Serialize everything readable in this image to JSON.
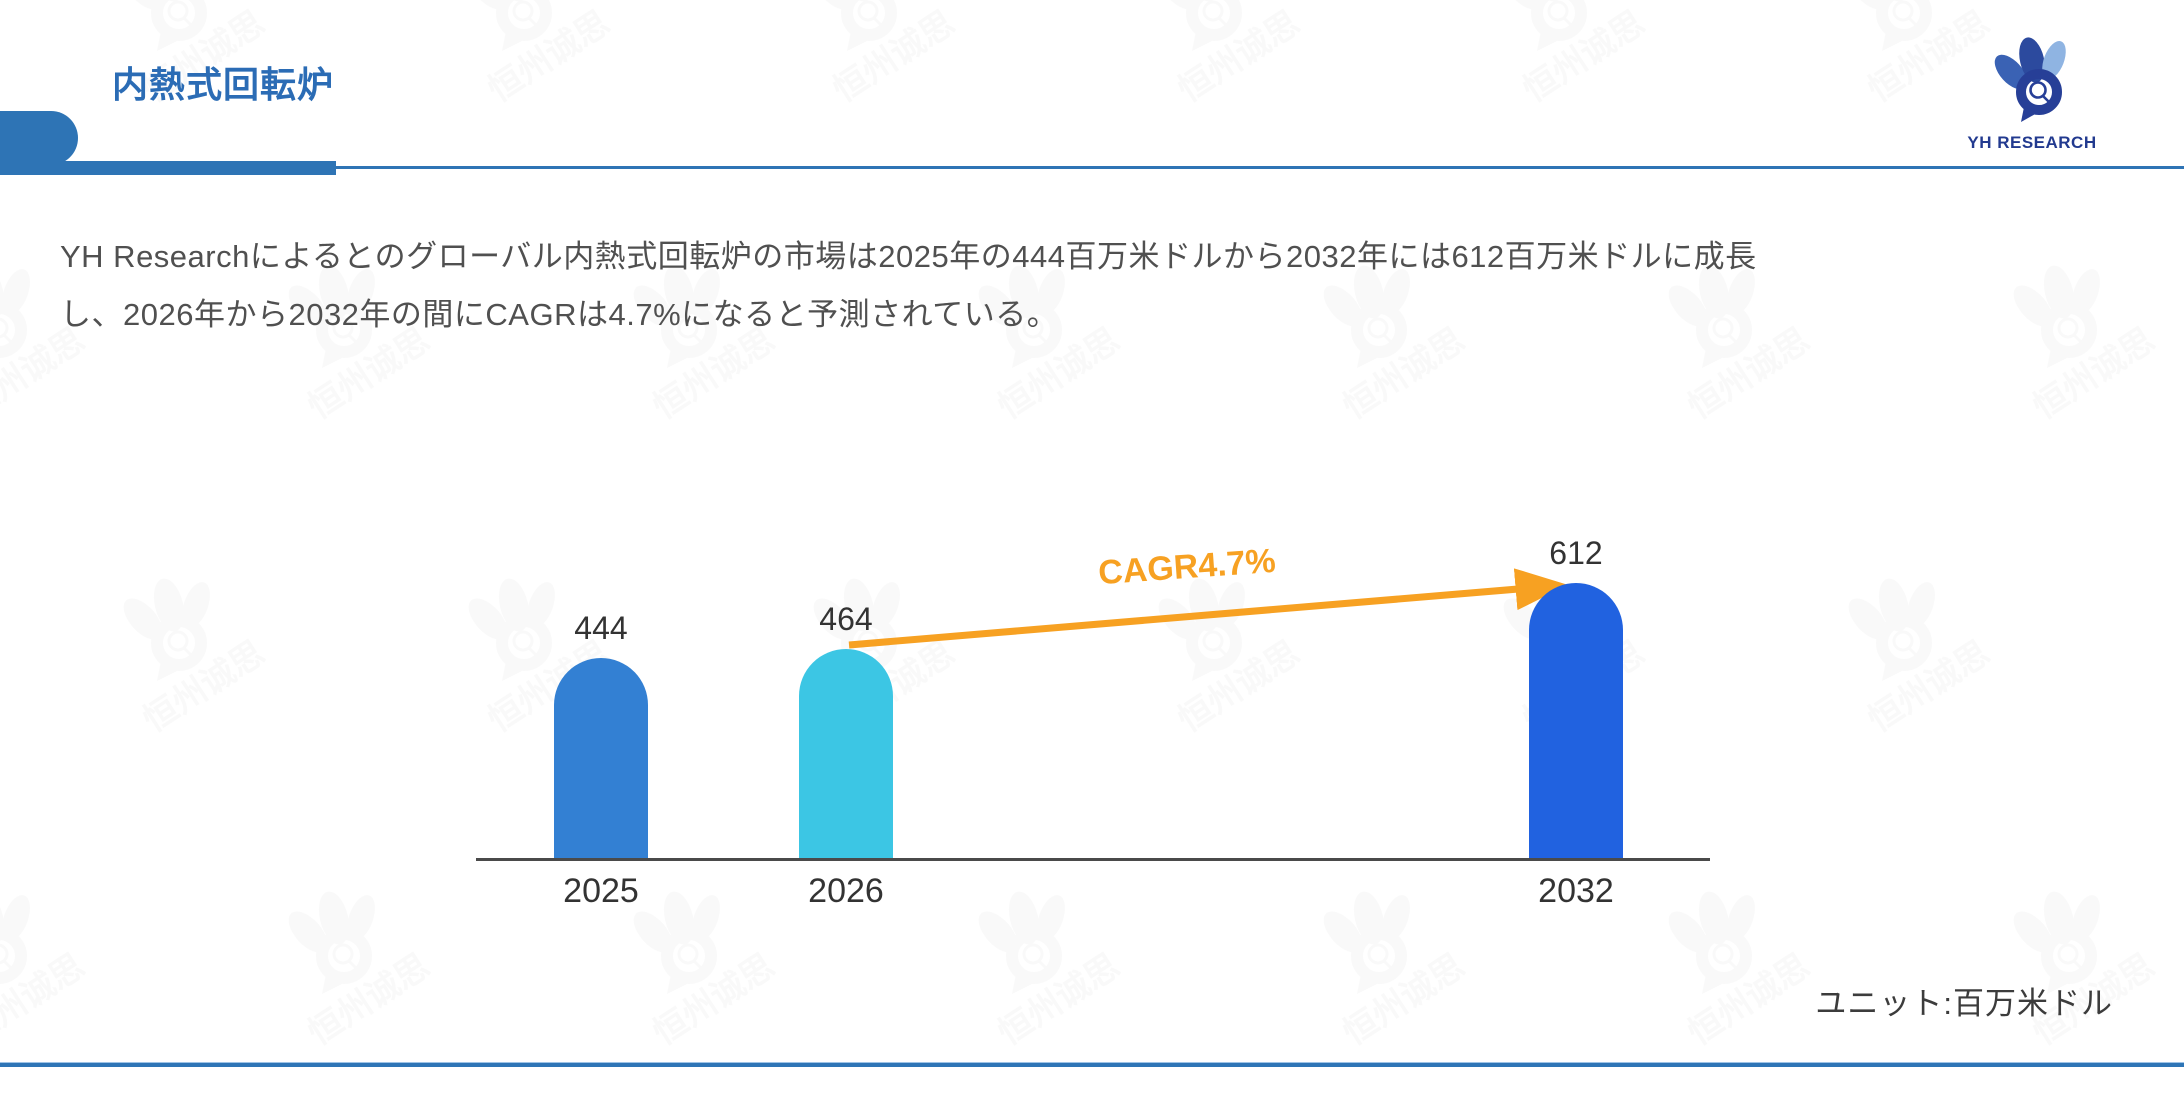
{
  "header": {
    "title": "内熱式回転炉",
    "logo_text": "YH RESEARCH"
  },
  "summary": {
    "lines": [
      "YH Researchによるとのグローバル内熱式回転炉の市場は2025年の444百万米ドルから2032年には612百万米ドルに成長",
      "し、2026年から2032年の間にCAGRは4.7%になると予測されている。"
    ]
  },
  "chart_data": {
    "type": "bar",
    "title": "",
    "categories": [
      "2025",
      "2026",
      "2032"
    ],
    "values": [
      444,
      464,
      612
    ],
    "value_labels": [
      "444",
      "464",
      "612"
    ],
    "bar_colors": [
      "#3380d3",
      "#3cc6e4",
      "#2162e0"
    ],
    "annotation": {
      "label": "CAGR4.7%",
      "color": "#f7a122",
      "from_category": "2026",
      "to_category": "2032"
    },
    "unit_label": "ユニット:百万米ドル",
    "xlabel": "",
    "ylabel": "",
    "grid": false,
    "legend": "none"
  },
  "watermark": {
    "text": "恒州诚思"
  },
  "colors": {
    "accent_blue": "#2e74b5",
    "title_blue": "#2b6cb5",
    "body_text_gray": "#505050",
    "axis_gray": "#4a4a4a",
    "arrow_orange": "#f7a122",
    "logo_navy": "#223a8f"
  }
}
